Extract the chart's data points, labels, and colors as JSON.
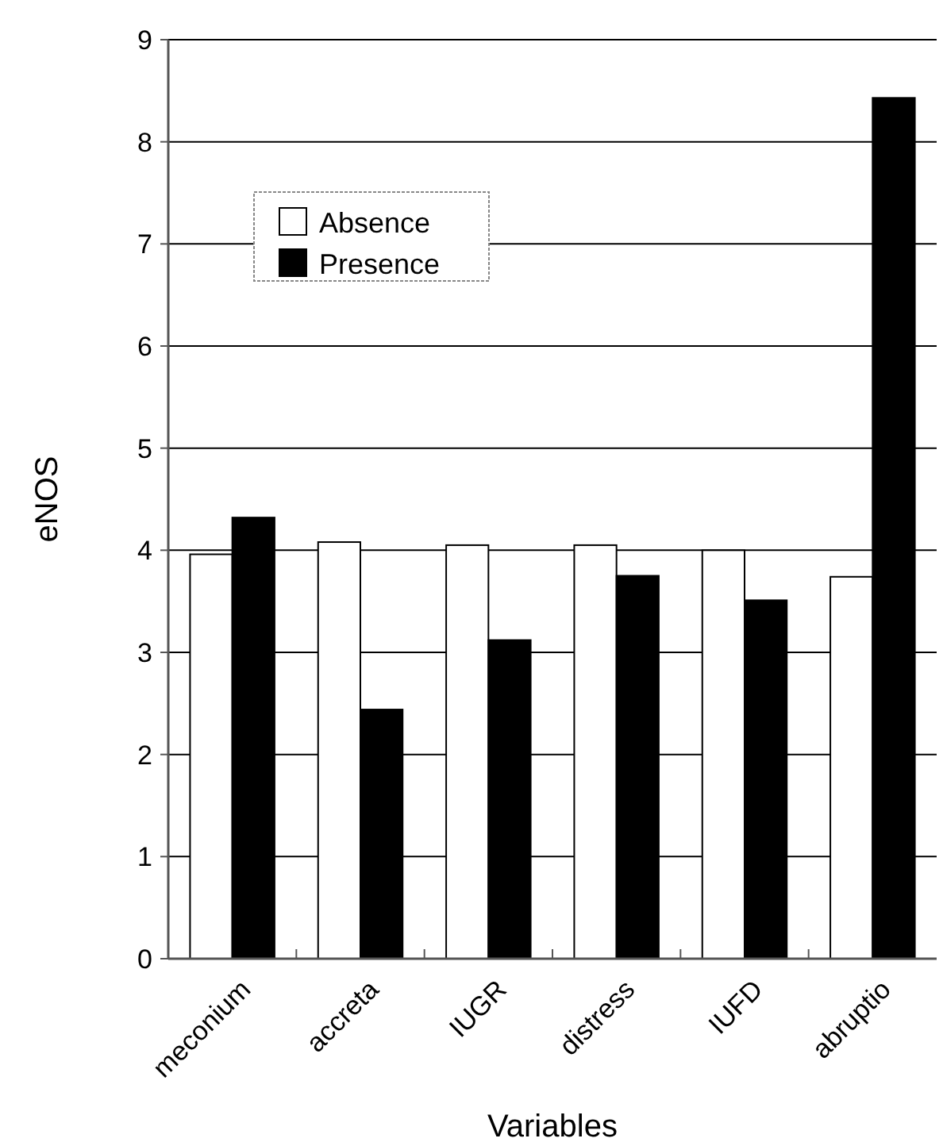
{
  "chart_data": {
    "type": "bar",
    "xlabel": "Variables",
    "ylabel": "eNOS",
    "categories": [
      "meconium",
      "accreta",
      "IUGR",
      "distress",
      "IUFD",
      "abruptio"
    ],
    "series": [
      {
        "name": "Absence",
        "color": "#ffffff",
        "values": [
          3.96,
          4.08,
          4.05,
          4.05,
          4.0,
          3.74
        ]
      },
      {
        "name": "Presence",
        "color": "#000000",
        "values": [
          4.32,
          2.44,
          3.12,
          3.75,
          3.51,
          8.43
        ]
      }
    ],
    "ylim": [
      0,
      9
    ],
    "yticks": [
      0,
      1,
      2,
      3,
      4,
      5,
      6,
      7,
      8,
      9
    ],
    "grid": "y",
    "legend": "top left"
  }
}
